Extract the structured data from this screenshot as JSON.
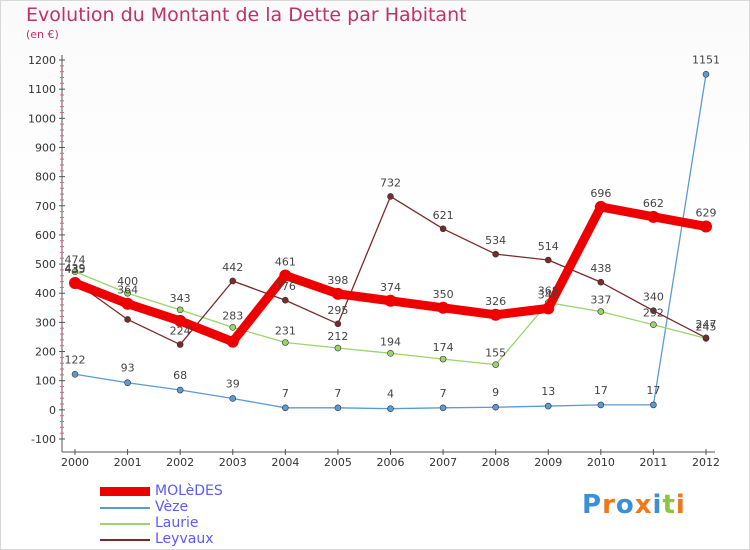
{
  "chart_data": {
    "type": "line",
    "title": "Evolution du Montant de la Dette par Habitant",
    "subtitle": "(en €)",
    "xlabel": "",
    "ylabel": "",
    "x": [
      "2000",
      "2001",
      "2002",
      "2003",
      "2004",
      "2005",
      "2006",
      "2007",
      "2008",
      "2009",
      "2010",
      "2011",
      "2012"
    ],
    "ylim": [
      -100,
      1200
    ],
    "yticks": [
      -100,
      0,
      100,
      200,
      300,
      400,
      500,
      600,
      700,
      800,
      900,
      1000,
      1100,
      1200
    ],
    "grid": false,
    "legend_position": "bottom-left",
    "series": [
      {
        "name": "MOLèDES",
        "color": "#ee0000",
        "values": [
          435,
          364,
          305,
          234,
          461,
          398,
          374,
          350,
          326,
          348,
          696,
          662,
          629
        ]
      },
      {
        "name": "Vèze",
        "color": "#5a9bd5",
        "values": [
          122,
          93,
          68,
          39,
          7,
          7,
          4,
          7,
          9,
          13,
          17,
          17,
          1151
        ]
      },
      {
        "name": "Laurie",
        "color": "#9ad46a",
        "values": [
          474,
          400,
          343,
          283,
          231,
          212,
          194,
          174,
          155,
          368,
          337,
          292,
          245
        ]
      },
      {
        "name": "Leyvaux",
        "color": "#7a2a2a",
        "values": [
          439,
          310,
          224,
          442,
          376,
          295,
          732,
          621,
          534,
          514,
          438,
          340,
          247
        ]
      }
    ]
  },
  "labels": {
    "MOLèDES": [
      "435",
      "364",
      "",
      "",
      "461",
      "398",
      "374",
      "350",
      "326",
      "348",
      "696",
      "662",
      "629"
    ],
    "Vèze": [
      "122",
      "93",
      "68",
      "39",
      "7",
      "7",
      "4",
      "7",
      "9",
      "13",
      "17",
      "17",
      "1151"
    ],
    "Laurie": [
      "474",
      "400",
      "343",
      "283",
      "231",
      "212",
      "194",
      "174",
      "155",
      "368",
      "337",
      "292",
      "245"
    ],
    "Leyvaux": [
      "439",
      "",
      "224",
      "442",
      "376",
      "295",
      "732",
      "621",
      "534",
      "514",
      "438",
      "340",
      "247"
    ]
  },
  "brand": {
    "logo_text": "Proxiti"
  }
}
